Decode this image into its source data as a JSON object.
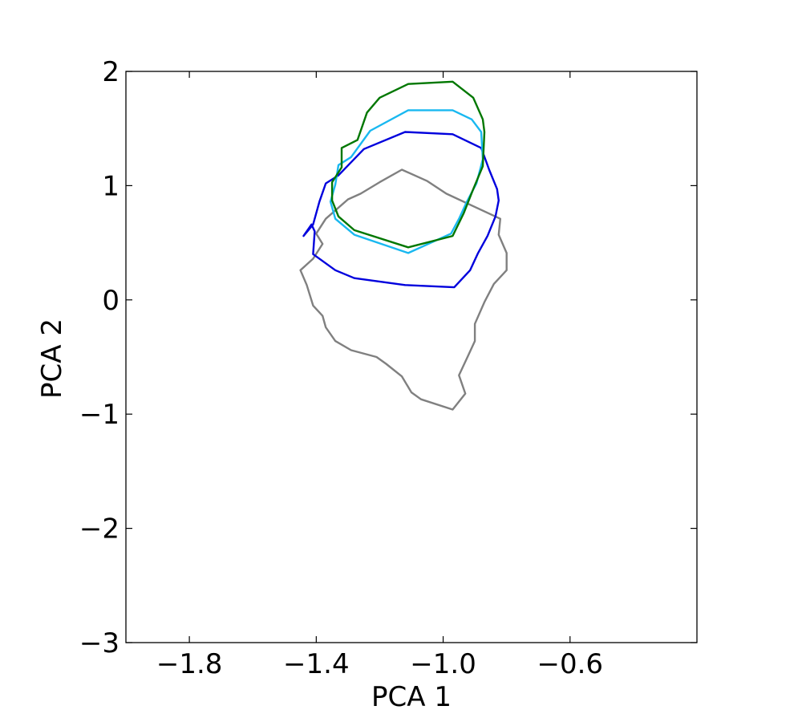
{
  "chart_data": {
    "type": "line",
    "title": "",
    "xlabel": "PCA 1",
    "ylabel": "PCA 2",
    "xlim": [
      -2.0,
      -0.2
    ],
    "ylim": [
      -3,
      2
    ],
    "xticks": [
      -1.8,
      -1.4,
      -1.0,
      -0.6
    ],
    "xtick_labels": [
      "−1.8",
      "−1.4",
      "−1.0",
      "−0.6"
    ],
    "yticks": [
      -3,
      -2,
      -1,
      0,
      1,
      2
    ],
    "ytick_labels": [
      "−3",
      "−2",
      "−1",
      "0",
      "1",
      "2"
    ],
    "grid": false,
    "series": [
      {
        "color": "#808080",
        "closed": true,
        "points": [
          [
            -1.13,
            1.14
          ],
          [
            -1.05,
            1.04
          ],
          [
            -0.99,
            0.93
          ],
          [
            -0.82,
            0.71
          ],
          [
            -0.825,
            0.57
          ],
          [
            -0.8,
            0.41
          ],
          [
            -0.8,
            0.26
          ],
          [
            -0.84,
            0.14
          ],
          [
            -0.87,
            -0.02
          ],
          [
            -0.9,
            -0.21
          ],
          [
            -0.9,
            -0.36
          ],
          [
            -0.92,
            -0.48
          ],
          [
            -0.95,
            -0.66
          ],
          [
            -0.93,
            -0.82
          ],
          [
            -0.97,
            -0.96
          ],
          [
            -1.07,
            -0.87
          ],
          [
            -1.1,
            -0.81
          ],
          [
            -1.13,
            -0.67
          ],
          [
            -1.18,
            -0.56
          ],
          [
            -1.21,
            -0.5
          ],
          [
            -1.29,
            -0.44
          ],
          [
            -1.34,
            -0.36
          ],
          [
            -1.37,
            -0.24
          ],
          [
            -1.38,
            -0.14
          ],
          [
            -1.41,
            -0.05
          ],
          [
            -1.43,
            0.13
          ],
          [
            -1.45,
            0.26
          ],
          [
            -1.41,
            0.36
          ],
          [
            -1.38,
            0.49
          ],
          [
            -1.4,
            0.58
          ],
          [
            -1.37,
            0.71
          ],
          [
            -1.3,
            0.88
          ],
          [
            -1.26,
            0.93
          ],
          [
            -1.2,
            1.03
          ],
          [
            -1.13,
            1.14
          ]
        ]
      },
      {
        "color": "#0000dd",
        "closed": true,
        "points": [
          [
            -1.12,
            1.47
          ],
          [
            -0.97,
            1.45
          ],
          [
            -0.88,
            1.33
          ],
          [
            -0.855,
            1.14
          ],
          [
            -0.83,
            0.97
          ],
          [
            -0.825,
            0.87
          ],
          [
            -0.835,
            0.73
          ],
          [
            -0.86,
            0.56
          ],
          [
            -0.89,
            0.41
          ],
          [
            -0.915,
            0.26
          ],
          [
            -0.965,
            0.11
          ],
          [
            -1.12,
            0.13
          ],
          [
            -1.28,
            0.19
          ],
          [
            -1.34,
            0.26
          ],
          [
            -1.41,
            0.4
          ],
          [
            -1.405,
            0.6
          ],
          [
            -1.415,
            0.66
          ],
          [
            -1.44,
            0.56
          ],
          [
            -1.41,
            0.66
          ],
          [
            -1.39,
            0.86
          ],
          [
            -1.37,
            1.02
          ],
          [
            -1.33,
            1.09
          ],
          [
            -1.25,
            1.32
          ],
          [
            -1.12,
            1.47
          ]
        ]
      },
      {
        "color": "#19b8f0",
        "closed": true,
        "points": [
          [
            -1.11,
            1.66
          ],
          [
            -0.97,
            1.66
          ],
          [
            -0.91,
            1.58
          ],
          [
            -0.88,
            1.47
          ],
          [
            -0.875,
            1.23
          ],
          [
            -0.895,
            1.02
          ],
          [
            -0.925,
            0.86
          ],
          [
            -0.95,
            0.71
          ],
          [
            -0.975,
            0.58
          ],
          [
            -1.11,
            0.41
          ],
          [
            -1.28,
            0.57
          ],
          [
            -1.34,
            0.71
          ],
          [
            -1.355,
            0.86
          ],
          [
            -1.34,
            1.01
          ],
          [
            -1.33,
            1.18
          ],
          [
            -1.29,
            1.25
          ],
          [
            -1.23,
            1.48
          ],
          [
            -1.11,
            1.66
          ]
        ]
      },
      {
        "color": "#007700",
        "closed": true,
        "points": [
          [
            -1.11,
            1.89
          ],
          [
            -0.97,
            1.91
          ],
          [
            -0.905,
            1.77
          ],
          [
            -0.875,
            1.58
          ],
          [
            -0.87,
            1.47
          ],
          [
            -0.875,
            1.17
          ],
          [
            -0.905,
            0.97
          ],
          [
            -0.935,
            0.76
          ],
          [
            -0.97,
            0.56
          ],
          [
            -1.11,
            0.46
          ],
          [
            -1.28,
            0.61
          ],
          [
            -1.33,
            0.73
          ],
          [
            -1.35,
            0.87
          ],
          [
            -1.35,
            1.03
          ],
          [
            -1.32,
            1.16
          ],
          [
            -1.32,
            1.33
          ],
          [
            -1.27,
            1.4
          ],
          [
            -1.24,
            1.64
          ],
          [
            -1.2,
            1.77
          ],
          [
            -1.11,
            1.89
          ]
        ]
      }
    ]
  }
}
